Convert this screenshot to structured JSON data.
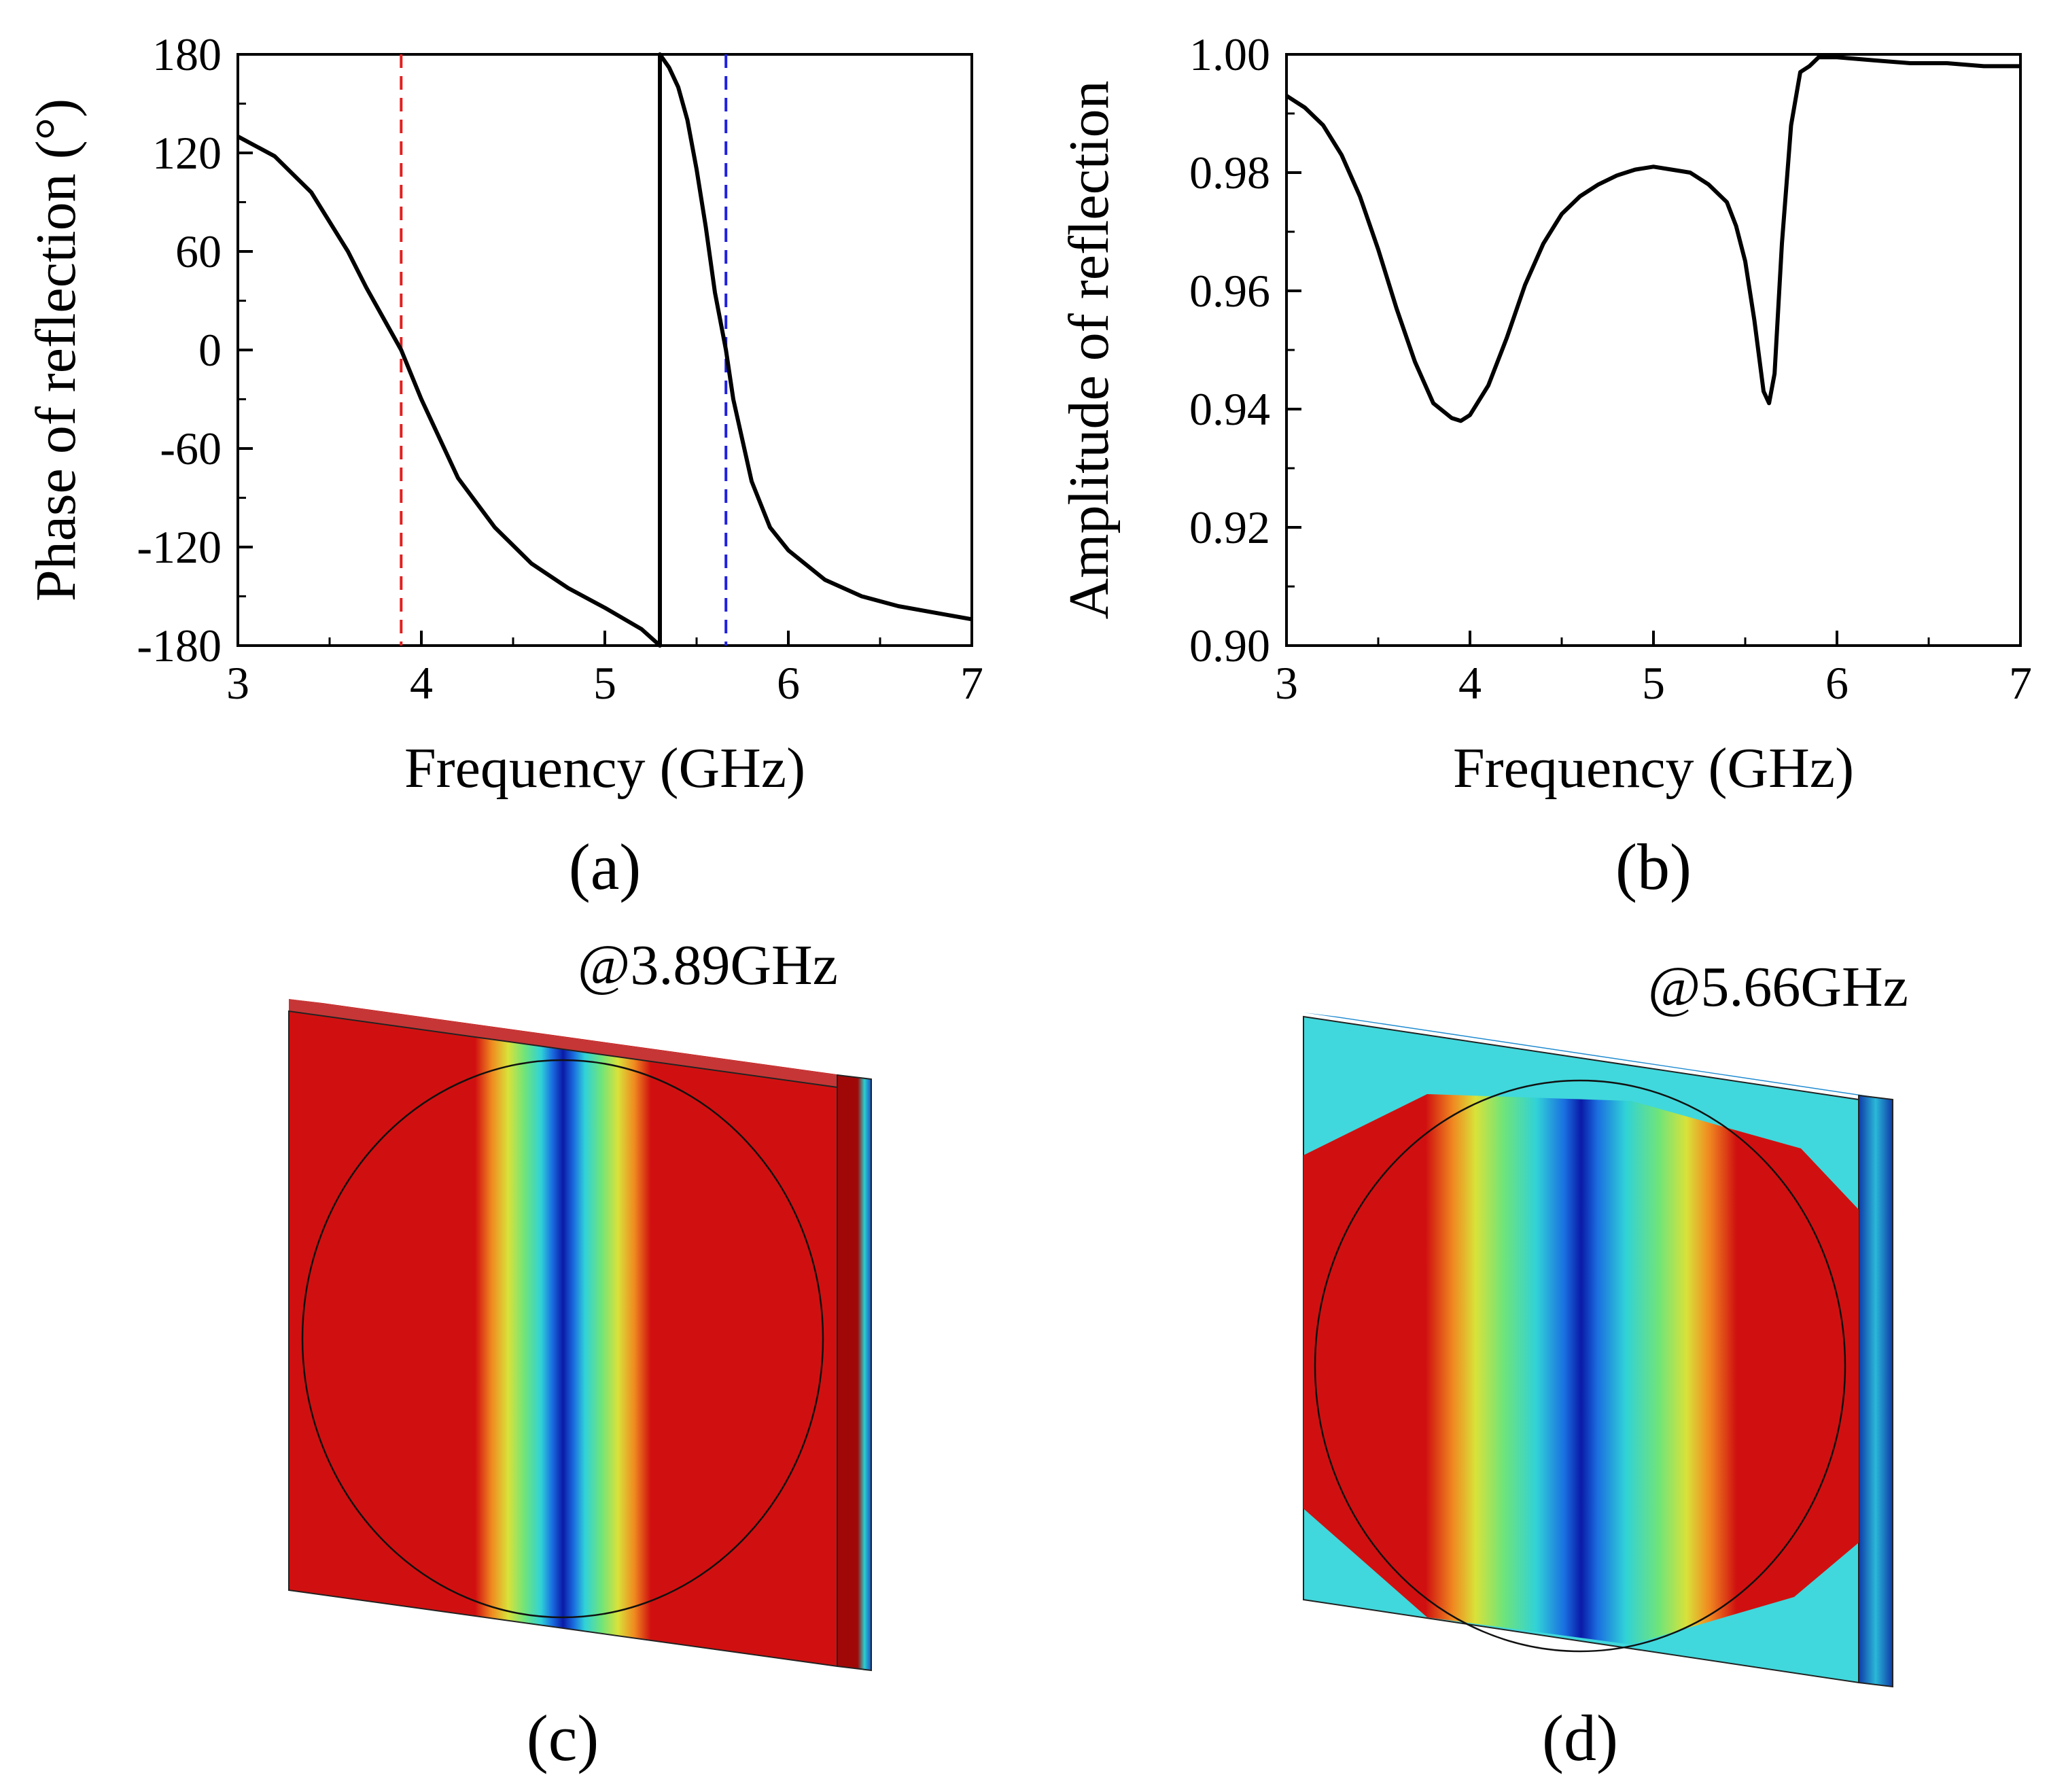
{
  "figure": {
    "panels": [
      {
        "id": "a",
        "label": "(a)"
      },
      {
        "id": "b",
        "label": "(b)"
      },
      {
        "id": "c",
        "label": "(c)",
        "frequency_label": "@3.89GHz",
        "colormap": [
          "#0a1aa8",
          "#1a6fe0",
          "#30d2d8",
          "#6fe47a",
          "#d9e23a",
          "#f08a20",
          "#d01010"
        ]
      },
      {
        "id": "d",
        "label": "(d)",
        "frequency_label": "@5.66GHz",
        "colormap": [
          "#0a1aa8",
          "#1a6fe0",
          "#30d2d8",
          "#6fe47a",
          "#d9e23a",
          "#f08a20",
          "#d01010"
        ]
      }
    ]
  },
  "chart_data": [
    {
      "panel": "a",
      "type": "line",
      "title": "",
      "xlabel": "Frequency (GHz)",
      "ylabel": "Phase of reflection (°)",
      "xlim": [
        3,
        7
      ],
      "ylim": [
        -180,
        180
      ],
      "xticks": [
        "3",
        "4",
        "5",
        "6",
        "7"
      ],
      "yticks": [
        "180",
        "120",
        "60",
        "0",
        "-60",
        "-120",
        "-180"
      ],
      "grid": false,
      "series": [
        {
          "name": "phase",
          "color": "#000000",
          "x": [
            3.0,
            3.2,
            3.4,
            3.6,
            3.7,
            3.8,
            3.89,
            4.0,
            4.2,
            4.4,
            4.6,
            4.8,
            5.0,
            5.2,
            5.3,
            5.3,
            5.35,
            5.4,
            5.45,
            5.5,
            5.55,
            5.6,
            5.66,
            5.7,
            5.8,
            5.9,
            6.0,
            6.2,
            6.4,
            6.6,
            6.8,
            7.0
          ],
          "y": [
            130,
            118,
            96,
            60,
            38,
            18,
            0,
            -30,
            -78,
            -108,
            -130,
            -145,
            -157,
            -170,
            -180,
            180,
            172,
            160,
            140,
            110,
            75,
            35,
            0,
            -30,
            -80,
            -108,
            -122,
            -140,
            -150,
            -156,
            -160,
            -164
          ]
        }
      ],
      "markers": [
        {
          "name": "resonance-1",
          "x": 3.89,
          "color": "#e02020",
          "style": "dashed"
        },
        {
          "name": "resonance-2",
          "x": 5.66,
          "color": "#2020e0",
          "style": "dashed"
        }
      ]
    },
    {
      "panel": "b",
      "type": "line",
      "title": "",
      "xlabel": "Frequency (GHz)",
      "ylabel": "Amplitude of reflection",
      "xlim": [
        3,
        7
      ],
      "ylim": [
        0.9,
        1.0
      ],
      "xticks": [
        "3",
        "4",
        "5",
        "6",
        "7"
      ],
      "yticks": [
        "1.00",
        "0.98",
        "0.96",
        "0.94",
        "0.92",
        "0.90"
      ],
      "grid": false,
      "series": [
        {
          "name": "amplitude",
          "color": "#000000",
          "x": [
            3.0,
            3.1,
            3.2,
            3.3,
            3.4,
            3.5,
            3.6,
            3.7,
            3.8,
            3.9,
            3.95,
            4.0,
            4.1,
            4.2,
            4.3,
            4.4,
            4.5,
            4.6,
            4.7,
            4.8,
            4.9,
            5.0,
            5.1,
            5.2,
            5.3,
            5.4,
            5.45,
            5.5,
            5.55,
            5.6,
            5.63,
            5.66,
            5.7,
            5.75,
            5.8,
            5.85,
            5.9,
            6.0,
            6.2,
            6.4,
            6.6,
            6.8,
            7.0
          ],
          "y": [
            0.993,
            0.991,
            0.988,
            0.983,
            0.976,
            0.967,
            0.957,
            0.948,
            0.941,
            0.9385,
            0.938,
            0.939,
            0.944,
            0.952,
            0.961,
            0.968,
            0.973,
            0.976,
            0.978,
            0.9795,
            0.9805,
            0.981,
            0.9805,
            0.98,
            0.978,
            0.975,
            0.971,
            0.965,
            0.955,
            0.943,
            0.941,
            0.946,
            0.968,
            0.988,
            0.997,
            0.998,
            0.9995,
            0.9995,
            0.999,
            0.9985,
            0.9985,
            0.998,
            0.998
          ]
        }
      ]
    }
  ]
}
